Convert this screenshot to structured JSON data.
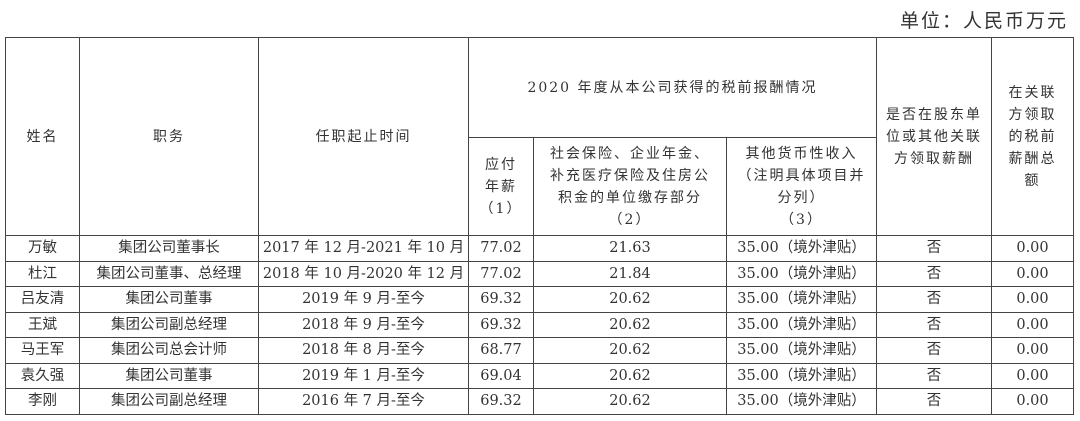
{
  "unit_label": "单位：人民币万元",
  "headers": {
    "name": "姓名",
    "position": "职务",
    "tenure": "任职起止时间",
    "group": "2020 年度从本公司获得的税前报酬情况",
    "salary": [
      "应付",
      "年薪",
      "（1）"
    ],
    "insurance": [
      "社会保险、企业年金、",
      "补充医疗保险及住房公",
      "积金的单位缴存部分",
      "（2）"
    ],
    "other": [
      "其他货币性收入",
      "（注明具体项目并",
      "分列）",
      "（3）"
    ],
    "related_flag": [
      "是否在股东单",
      "位或其他关联",
      "方领取薪酬"
    ],
    "related_total": [
      "在关联",
      "方领取",
      "的税前",
      "薪酬总",
      "额"
    ]
  },
  "rows": [
    {
      "name": "万敏",
      "position": "集团公司董事长",
      "tenure": "2017 年 12 月-2021 年 10 月",
      "salary": "77.02",
      "insurance": "21.63",
      "other": "35.00（境外津贴）",
      "related_flag": "否",
      "related_total": "0.00"
    },
    {
      "name": "杜江",
      "position": "集团公司董事、总经理",
      "tenure": "2018 年 10 月-2020 年 12 月",
      "salary": "77.02",
      "insurance": "21.84",
      "other": "35.00（境外津贴）",
      "related_flag": "否",
      "related_total": "0.00"
    },
    {
      "name": "吕友清",
      "position": "集团公司董事",
      "tenure": "2019 年 9 月-至今",
      "salary": "69.32",
      "insurance": "20.62",
      "other": "35.00（境外津贴）",
      "related_flag": "否",
      "related_total": "0.00"
    },
    {
      "name": "王斌",
      "position": "集团公司副总经理",
      "tenure": "2018 年 9 月-至今",
      "salary": "69.32",
      "insurance": "20.62",
      "other": "35.00（境外津贴）",
      "related_flag": "否",
      "related_total": "0.00"
    },
    {
      "name": "马王军",
      "position": "集团公司总会计师",
      "tenure": "2018 年 8 月-至今",
      "salary": "68.77",
      "insurance": "20.62",
      "other": "35.00（境外津贴）",
      "related_flag": "否",
      "related_total": "0.00"
    },
    {
      "name": "袁久强",
      "position": "集团公司董事",
      "tenure": "2019 年 1 月-至今",
      "salary": "69.04",
      "insurance": "20.62",
      "other": "35.00（境外津贴）",
      "related_flag": "否",
      "related_total": "0.00"
    },
    {
      "name": "李刚",
      "position": "集团公司副总经理",
      "tenure": "2016 年 7 月-至今",
      "salary": "69.32",
      "insurance": "20.62",
      "other": "35.00（境外津贴）",
      "related_flag": "否",
      "related_total": "0.00"
    }
  ]
}
